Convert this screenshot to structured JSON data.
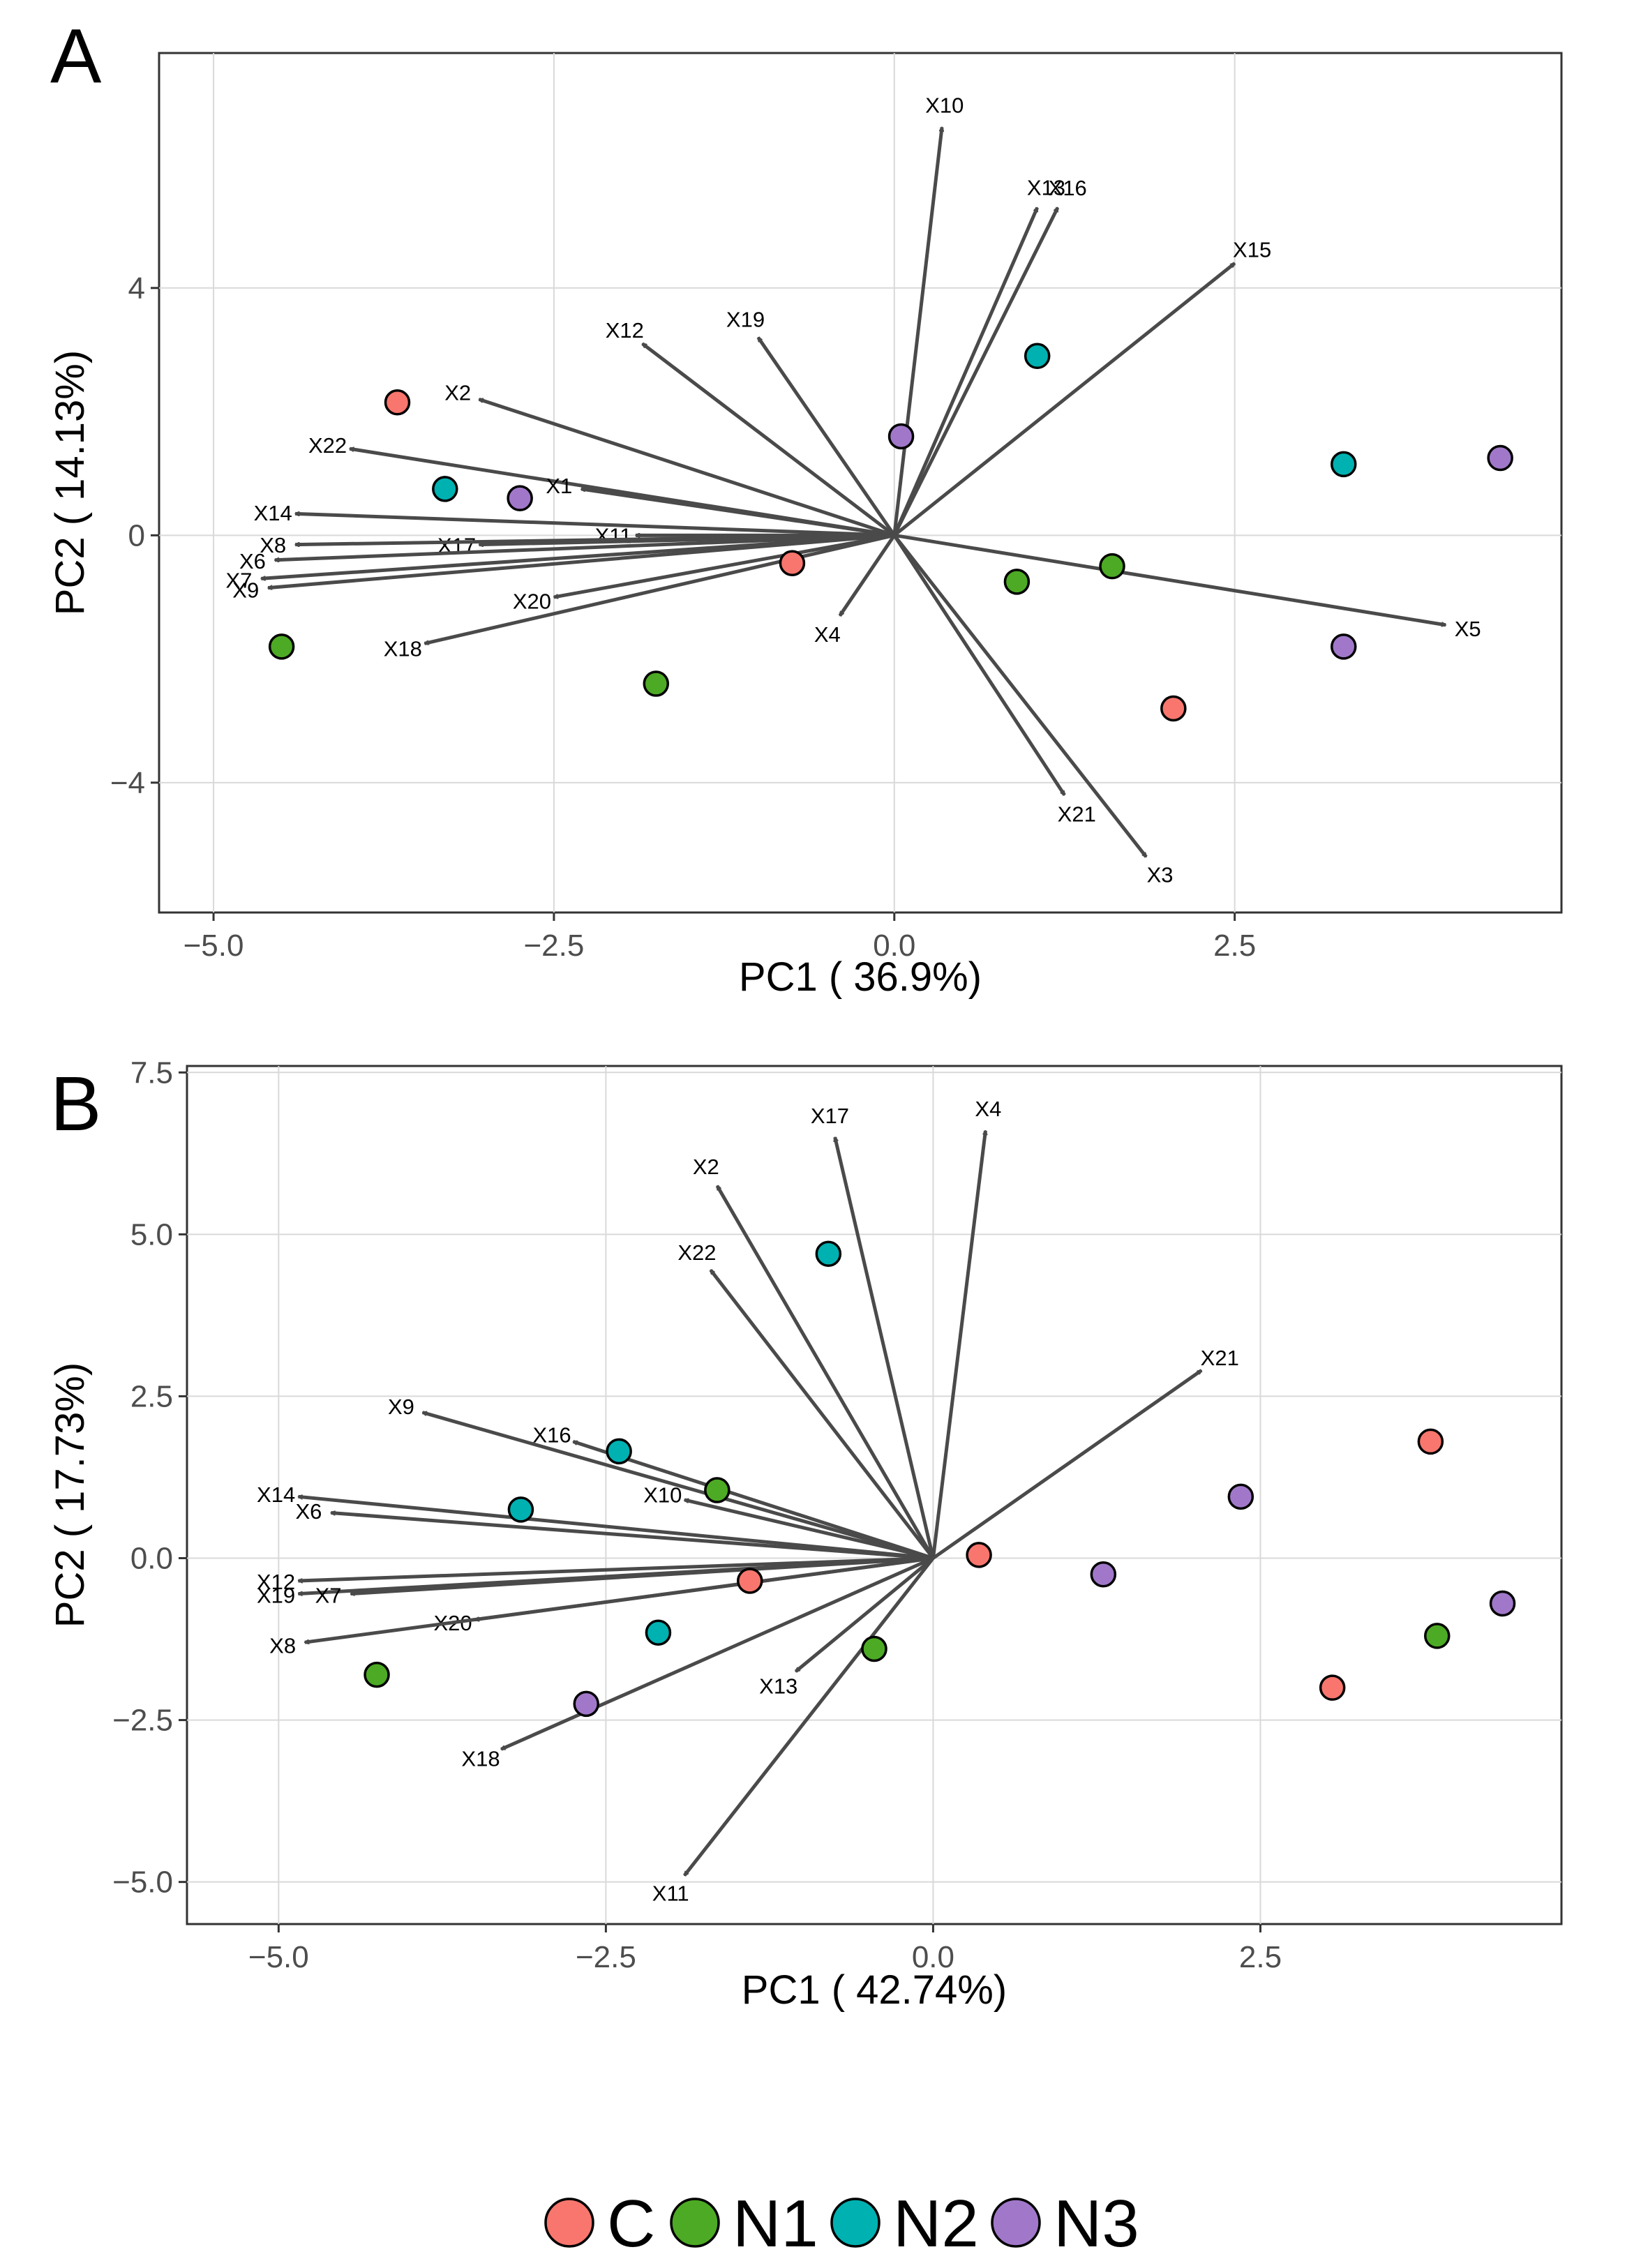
{
  "chart_data": [
    {
      "type": "scatter",
      "subtype": "pca-biplot",
      "panel": "A",
      "xlabel": "PC1 ( 36.9%)",
      "ylabel": "PC2 ( 14.13%)",
      "xlim": [
        -5.4,
        4.9
      ],
      "ylim": [
        -6.1,
        7.8
      ],
      "xticks": [
        -5.0,
        -2.5,
        0.0,
        2.5
      ],
      "xtick_labels": [
        "−5.0",
        "−2.5",
        "0.0",
        "2.5"
      ],
      "yticks": [
        -4,
        0,
        4
      ],
      "ytick_labels": [
        "−4",
        "0",
        "4"
      ],
      "grid": true,
      "points": [
        {
          "group": "C",
          "x": -3.65,
          "y": 2.15
        },
        {
          "group": "C",
          "x": -0.75,
          "y": -0.45
        },
        {
          "group": "C",
          "x": 2.05,
          "y": -2.8
        },
        {
          "group": "N1",
          "x": -4.5,
          "y": -1.8
        },
        {
          "group": "N1",
          "x": -1.75,
          "y": -2.4
        },
        {
          "group": "N1",
          "x": 0.9,
          "y": -0.75
        },
        {
          "group": "N1",
          "x": 1.6,
          "y": -0.5
        },
        {
          "group": "N2",
          "x": -3.3,
          "y": 0.75
        },
        {
          "group": "N2",
          "x": 1.05,
          "y": 2.9
        },
        {
          "group": "N2",
          "x": 3.3,
          "y": 1.15
        },
        {
          "group": "N3",
          "x": -2.75,
          "y": 0.6
        },
        {
          "group": "N3",
          "x": 0.05,
          "y": 1.6
        },
        {
          "group": "N3",
          "x": 4.45,
          "y": 1.25
        },
        {
          "group": "N3",
          "x": 3.3,
          "y": -1.8
        }
      ],
      "loadings": [
        {
          "name": "X10",
          "x": 0.35,
          "y": 6.6
        },
        {
          "name": "X13",
          "x": 1.05,
          "y": 5.3
        },
        {
          "name": "X16",
          "x": 1.2,
          "y": 5.3
        },
        {
          "name": "X15",
          "x": 2.5,
          "y": 4.4
        },
        {
          "name": "X19",
          "x": -1.0,
          "y": 3.2
        },
        {
          "name": "X12",
          "x": -1.85,
          "y": 3.1
        },
        {
          "name": "X2",
          "x": -3.05,
          "y": 2.2
        },
        {
          "name": "X22",
          "x": -4.0,
          "y": 1.4
        },
        {
          "name": "X1",
          "x": -2.3,
          "y": 0.75
        },
        {
          "name": "X14",
          "x": -4.4,
          "y": 0.35
        },
        {
          "name": "X11",
          "x": -1.9,
          "y": 0.0
        },
        {
          "name": "X17",
          "x": -3.05,
          "y": -0.15
        },
        {
          "name": "X8",
          "x": -4.4,
          "y": -0.15
        },
        {
          "name": "X6",
          "x": -4.55,
          "y": -0.4
        },
        {
          "name": "X7",
          "x": -4.65,
          "y": -0.7
        },
        {
          "name": "X9",
          "x": -4.6,
          "y": -0.85
        },
        {
          "name": "X20",
          "x": -2.5,
          "y": -1.0
        },
        {
          "name": "X18",
          "x": -3.45,
          "y": -1.75
        },
        {
          "name": "X4",
          "x": -0.4,
          "y": -1.3
        },
        {
          "name": "X5",
          "x": 4.05,
          "y": -1.45
        },
        {
          "name": "X21",
          "x": 1.25,
          "y": -4.2
        },
        {
          "name": "X3",
          "x": 1.85,
          "y": -5.2
        }
      ]
    },
    {
      "type": "scatter",
      "subtype": "pca-biplot",
      "panel": "B",
      "xlabel": "PC1 ( 42.74%)",
      "ylabel": "PC2 ( 17.73%)",
      "xlim": [
        -5.7,
        4.8
      ],
      "ylim": [
        -5.65,
        7.6
      ],
      "xticks": [
        -5.0,
        -2.5,
        0.0,
        2.5
      ],
      "xtick_labels": [
        "−5.0",
        "−2.5",
        "0.0",
        "2.5"
      ],
      "yticks": [
        -5.0,
        -2.5,
        0.0,
        2.5,
        5.0,
        7.5
      ],
      "ytick_labels": [
        "−5.0",
        "−2.5",
        "0.0",
        "2.5",
        "5.0",
        "7.5"
      ],
      "grid": true,
      "points": [
        {
          "group": "C",
          "x": 0.35,
          "y": 0.05
        },
        {
          "group": "C",
          "x": -1.4,
          "y": -0.35
        },
        {
          "group": "C",
          "x": 3.8,
          "y": 1.8
        },
        {
          "group": "C",
          "x": 3.05,
          "y": -2.0
        },
        {
          "group": "N1",
          "x": -1.65,
          "y": 1.05
        },
        {
          "group": "N1",
          "x": -0.45,
          "y": -1.4
        },
        {
          "group": "N1",
          "x": -4.25,
          "y": -1.8
        },
        {
          "group": "N1",
          "x": 3.85,
          "y": -1.2
        },
        {
          "group": "N2",
          "x": -0.8,
          "y": 4.7
        },
        {
          "group": "N2",
          "x": -2.4,
          "y": 1.65
        },
        {
          "group": "N2",
          "x": -3.15,
          "y": 0.75
        },
        {
          "group": "N2",
          "x": -2.1,
          "y": -1.15
        },
        {
          "group": "N3",
          "x": 2.35,
          "y": 0.95
        },
        {
          "group": "N3",
          "x": 1.3,
          "y": -0.25
        },
        {
          "group": "N3",
          "x": -2.65,
          "y": -2.25
        },
        {
          "group": "N3",
          "x": 4.35,
          "y": -0.7
        }
      ],
      "loadings": [
        {
          "name": "X17",
          "x": -0.75,
          "y": 6.5
        },
        {
          "name": "X4",
          "x": 0.4,
          "y": 6.6
        },
        {
          "name": "X2",
          "x": -1.65,
          "y": 5.75
        },
        {
          "name": "X22",
          "x": -1.7,
          "y": 4.45
        },
        {
          "name": "X21",
          "x": 2.05,
          "y": 2.9
        },
        {
          "name": "X9",
          "x": -3.9,
          "y": 2.25
        },
        {
          "name": "X16",
          "x": -2.75,
          "y": 1.8
        },
        {
          "name": "X10",
          "x": -1.9,
          "y": 0.9
        },
        {
          "name": "X14",
          "x": -4.85,
          "y": 0.95
        },
        {
          "name": "X6",
          "x": -4.6,
          "y": 0.7
        },
        {
          "name": "X12",
          "x": -4.85,
          "y": -0.35
        },
        {
          "name": "X19",
          "x": -4.85,
          "y": -0.55
        },
        {
          "name": "X7",
          "x": -4.45,
          "y": -0.55
        },
        {
          "name": "X20",
          "x": -3.5,
          "y": -0.95
        },
        {
          "name": "X8",
          "x": -4.8,
          "y": -1.3
        },
        {
          "name": "X13",
          "x": -1.05,
          "y": -1.75
        },
        {
          "name": "X18",
          "x": -3.3,
          "y": -2.95
        },
        {
          "name": "X11",
          "x": -1.9,
          "y": -4.9
        }
      ]
    }
  ],
  "legend": {
    "position": "bottom",
    "items": [
      {
        "label": "C",
        "color": "#F8766D"
      },
      {
        "label": "N1",
        "color": "#4DAA24"
      },
      {
        "label": "N2",
        "color": "#00B1B1"
      },
      {
        "label": "N3",
        "color": "#A178C9"
      }
    ]
  },
  "panel_labels": {
    "a": "A",
    "b": "B"
  }
}
